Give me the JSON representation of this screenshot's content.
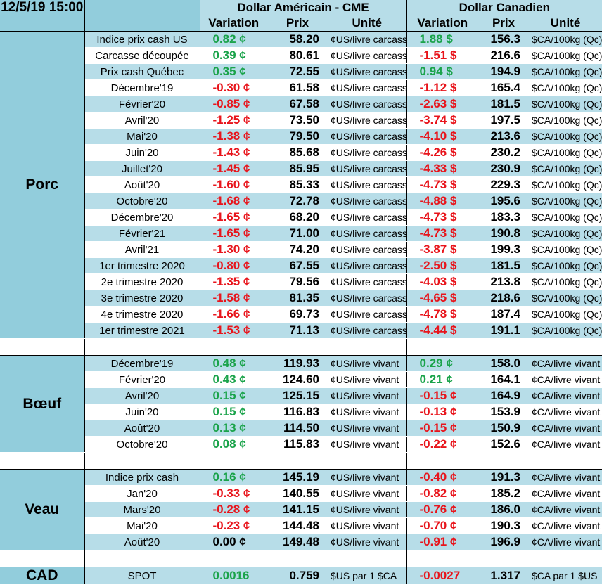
{
  "header": {
    "timestamp": "12/5/19 15:00",
    "usd_title": "Dollar Américain - CME",
    "cad_title": "Dollar Canadien",
    "col_variation": "Variation",
    "col_prix": "Prix",
    "col_unite": "Unité"
  },
  "colors": {
    "positive": "#1aa34a",
    "negative": "#e8141b",
    "row_blue": "#b7dde8",
    "group_blue": "#92cddc"
  },
  "groups": [
    {
      "name": "Porc",
      "rows": [
        {
          "label": "Indice prix cash US",
          "usd_var": "0.82 ¢",
          "usd_sign": "pos",
          "usd_prix": "58.20",
          "usd_unit": "¢US/livre carcasse",
          "cad_var": "1.88 $",
          "cad_sign": "pos",
          "cad_prix": "156.3",
          "cad_unit": "$CA/100kg (Qc)"
        },
        {
          "label": "Carcasse découpée",
          "usd_var": "0.39 ¢",
          "usd_sign": "pos",
          "usd_prix": "80.61",
          "usd_unit": "¢US/livre carcasse",
          "cad_var": "-1.51 $",
          "cad_sign": "neg",
          "cad_prix": "216.6",
          "cad_unit": "$CA/100kg (Qc)"
        },
        {
          "label": "Prix cash Québec",
          "usd_var": "0.35 ¢",
          "usd_sign": "pos",
          "usd_prix": "72.55",
          "usd_unit": "¢US/livre carcasse",
          "cad_var": "0.94 $",
          "cad_sign": "pos",
          "cad_prix": "194.9",
          "cad_unit": "$CA/100kg (Qc)"
        },
        {
          "label": "Décembre'19",
          "usd_var": "-0.30 ¢",
          "usd_sign": "neg",
          "usd_prix": "61.58",
          "usd_unit": "¢US/livre carcasse",
          "cad_var": "-1.12 $",
          "cad_sign": "neg",
          "cad_prix": "165.4",
          "cad_unit": "$CA/100kg (Qc)"
        },
        {
          "label": "Février'20",
          "usd_var": "-0.85 ¢",
          "usd_sign": "neg",
          "usd_prix": "67.58",
          "usd_unit": "¢US/livre carcasse",
          "cad_var": "-2.63 $",
          "cad_sign": "neg",
          "cad_prix": "181.5",
          "cad_unit": "$CA/100kg (Qc)"
        },
        {
          "label": "Avril'20",
          "usd_var": "-1.25 ¢",
          "usd_sign": "neg",
          "usd_prix": "73.50",
          "usd_unit": "¢US/livre carcasse",
          "cad_var": "-3.74 $",
          "cad_sign": "neg",
          "cad_prix": "197.5",
          "cad_unit": "$CA/100kg (Qc)"
        },
        {
          "label": "Mai'20",
          "usd_var": "-1.38 ¢",
          "usd_sign": "neg",
          "usd_prix": "79.50",
          "usd_unit": "¢US/livre carcasse",
          "cad_var": "-4.10 $",
          "cad_sign": "neg",
          "cad_prix": "213.6",
          "cad_unit": "$CA/100kg (Qc)"
        },
        {
          "label": "Juin'20",
          "usd_var": "-1.43 ¢",
          "usd_sign": "neg",
          "usd_prix": "85.68",
          "usd_unit": "¢US/livre carcasse",
          "cad_var": "-4.26 $",
          "cad_sign": "neg",
          "cad_prix": "230.2",
          "cad_unit": "$CA/100kg (Qc)"
        },
        {
          "label": "Juillet'20",
          "usd_var": "-1.45 ¢",
          "usd_sign": "neg",
          "usd_prix": "85.95",
          "usd_unit": "¢US/livre carcasse",
          "cad_var": "-4.33 $",
          "cad_sign": "neg",
          "cad_prix": "230.9",
          "cad_unit": "$CA/100kg (Qc)"
        },
        {
          "label": "Août'20",
          "usd_var": "-1.60 ¢",
          "usd_sign": "neg",
          "usd_prix": "85.33",
          "usd_unit": "¢US/livre carcasse",
          "cad_var": "-4.73 $",
          "cad_sign": "neg",
          "cad_prix": "229.3",
          "cad_unit": "$CA/100kg (Qc)"
        },
        {
          "label": "Octobre'20",
          "usd_var": "-1.68 ¢",
          "usd_sign": "neg",
          "usd_prix": "72.78",
          "usd_unit": "¢US/livre carcasse",
          "cad_var": "-4.88 $",
          "cad_sign": "neg",
          "cad_prix": "195.6",
          "cad_unit": "$CA/100kg (Qc)"
        },
        {
          "label": "Décembre'20",
          "usd_var": "-1.65 ¢",
          "usd_sign": "neg",
          "usd_prix": "68.20",
          "usd_unit": "¢US/livre carcasse",
          "cad_var": "-4.73 $",
          "cad_sign": "neg",
          "cad_prix": "183.3",
          "cad_unit": "$CA/100kg (Qc)"
        },
        {
          "label": "Février'21",
          "usd_var": "-1.65 ¢",
          "usd_sign": "neg",
          "usd_prix": "71.00",
          "usd_unit": "¢US/livre carcasse",
          "cad_var": "-4.73 $",
          "cad_sign": "neg",
          "cad_prix": "190.8",
          "cad_unit": "$CA/100kg (Qc)"
        },
        {
          "label": "Avril'21",
          "usd_var": "-1.30 ¢",
          "usd_sign": "neg",
          "usd_prix": "74.20",
          "usd_unit": "¢US/livre carcasse",
          "cad_var": "-3.87 $",
          "cad_sign": "neg",
          "cad_prix": "199.3",
          "cad_unit": "$CA/100kg (Qc)"
        },
        {
          "label": "1er trimestre 2020",
          "usd_var": "-0.80 ¢",
          "usd_sign": "neg",
          "usd_prix": "67.55",
          "usd_unit": "¢US/livre carcasse",
          "cad_var": "-2.50 $",
          "cad_sign": "neg",
          "cad_prix": "181.5",
          "cad_unit": "$CA/100kg (Qc)"
        },
        {
          "label": "2e trimestre 2020",
          "usd_var": "-1.35 ¢",
          "usd_sign": "neg",
          "usd_prix": "79.56",
          "usd_unit": "¢US/livre carcasse",
          "cad_var": "-4.03 $",
          "cad_sign": "neg",
          "cad_prix": "213.8",
          "cad_unit": "$CA/100kg (Qc)"
        },
        {
          "label": "3e trimestre 2020",
          "usd_var": "-1.58 ¢",
          "usd_sign": "neg",
          "usd_prix": "81.35",
          "usd_unit": "¢US/livre carcasse",
          "cad_var": "-4.65 $",
          "cad_sign": "neg",
          "cad_prix": "218.6",
          "cad_unit": "$CA/100kg (Qc)"
        },
        {
          "label": "4e trimestre 2020",
          "usd_var": "-1.66 ¢",
          "usd_sign": "neg",
          "usd_prix": "69.73",
          "usd_unit": "¢US/livre carcasse",
          "cad_var": "-4.78 $",
          "cad_sign": "neg",
          "cad_prix": "187.4",
          "cad_unit": "$CA/100kg (Qc)"
        },
        {
          "label": "1er trimestre 2021",
          "usd_var": "-1.53 ¢",
          "usd_sign": "neg",
          "usd_prix": "71.13",
          "usd_unit": "¢US/livre carcasse",
          "cad_var": "-4.44 $",
          "cad_sign": "neg",
          "cad_prix": "191.1",
          "cad_unit": "$CA/100kg (Qc)"
        }
      ]
    },
    {
      "name": "Bœuf",
      "rows": [
        {
          "label": "Décembre'19",
          "usd_var": "0.48 ¢",
          "usd_sign": "pos",
          "usd_prix": "119.93",
          "usd_unit": "¢US/livre vivant",
          "cad_var": "0.29 ¢",
          "cad_sign": "pos",
          "cad_prix": "158.0",
          "cad_unit": "¢CA/livre vivant"
        },
        {
          "label": "Février'20",
          "usd_var": "0.43 ¢",
          "usd_sign": "pos",
          "usd_prix": "124.60",
          "usd_unit": "¢US/livre vivant",
          "cad_var": "0.21 ¢",
          "cad_sign": "pos",
          "cad_prix": "164.1",
          "cad_unit": "¢CA/livre vivant"
        },
        {
          "label": "Avril'20",
          "usd_var": "0.15 ¢",
          "usd_sign": "pos",
          "usd_prix": "125.15",
          "usd_unit": "¢US/livre vivant",
          "cad_var": "-0.15 ¢",
          "cad_sign": "neg",
          "cad_prix": "164.9",
          "cad_unit": "¢CA/livre vivant"
        },
        {
          "label": "Juin'20",
          "usd_var": "0.15 ¢",
          "usd_sign": "pos",
          "usd_prix": "116.83",
          "usd_unit": "¢US/livre vivant",
          "cad_var": "-0.13 ¢",
          "cad_sign": "neg",
          "cad_prix": "153.9",
          "cad_unit": "¢CA/livre vivant"
        },
        {
          "label": "Août'20",
          "usd_var": "0.13 ¢",
          "usd_sign": "pos",
          "usd_prix": "114.50",
          "usd_unit": "¢US/livre vivant",
          "cad_var": "-0.15 ¢",
          "cad_sign": "neg",
          "cad_prix": "150.9",
          "cad_unit": "¢CA/livre vivant"
        },
        {
          "label": "Octobre'20",
          "usd_var": "0.08 ¢",
          "usd_sign": "pos",
          "usd_prix": "115.83",
          "usd_unit": "¢US/livre vivant",
          "cad_var": "-0.22 ¢",
          "cad_sign": "neg",
          "cad_prix": "152.6",
          "cad_unit": "¢CA/livre vivant"
        }
      ]
    },
    {
      "name": "Veau",
      "rows": [
        {
          "label": "Indice prix cash",
          "usd_var": "0.16 ¢",
          "usd_sign": "pos",
          "usd_prix": "145.19",
          "usd_unit": "¢US/livre vivant",
          "cad_var": "-0.40 ¢",
          "cad_sign": "neg",
          "cad_prix": "191.3",
          "cad_unit": "¢CA/livre vivant"
        },
        {
          "label": "Jan'20",
          "usd_var": "-0.33 ¢",
          "usd_sign": "neg",
          "usd_prix": "140.55",
          "usd_unit": "¢US/livre vivant",
          "cad_var": "-0.82 ¢",
          "cad_sign": "neg",
          "cad_prix": "185.2",
          "cad_unit": "¢CA/livre vivant"
        },
        {
          "label": "Mars'20",
          "usd_var": "-0.28 ¢",
          "usd_sign": "neg",
          "usd_prix": "141.15",
          "usd_unit": "¢US/livre vivant",
          "cad_var": "-0.76 ¢",
          "cad_sign": "neg",
          "cad_prix": "186.0",
          "cad_unit": "¢CA/livre vivant"
        },
        {
          "label": "Mai'20",
          "usd_var": "-0.23 ¢",
          "usd_sign": "neg",
          "usd_prix": "144.48",
          "usd_unit": "¢US/livre vivant",
          "cad_var": "-0.70 ¢",
          "cad_sign": "neg",
          "cad_prix": "190.3",
          "cad_unit": "¢CA/livre vivant"
        },
        {
          "label": "Août'20",
          "usd_var": "0.00 ¢",
          "usd_sign": "zero",
          "usd_prix": "149.48",
          "usd_unit": "¢US/livre vivant",
          "cad_var": "-0.91 ¢",
          "cad_sign": "neg",
          "cad_prix": "196.9",
          "cad_unit": "¢CA/livre vivant"
        }
      ]
    },
    {
      "name": "CAD",
      "rows": [
        {
          "label": "SPOT",
          "usd_var": "0.0016",
          "usd_sign": "pos",
          "usd_prix": "0.759",
          "usd_unit": "$US par 1 $CA",
          "cad_var": "-0.0027",
          "cad_sign": "neg",
          "cad_prix": "1.317",
          "cad_unit": "$CA par 1 $US"
        }
      ]
    }
  ]
}
